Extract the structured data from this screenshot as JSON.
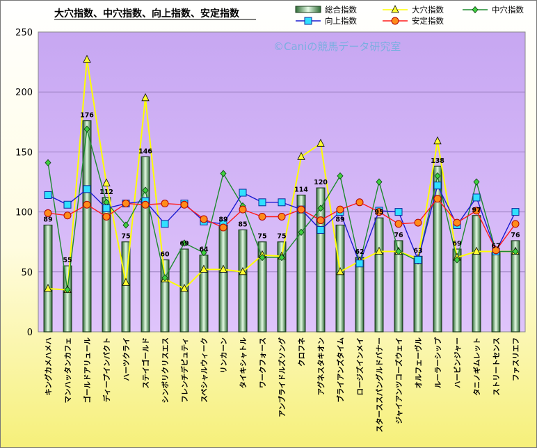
{
  "chart_data": {
    "type": "bar",
    "title": "大穴指数、中穴指数、向上指数、安定指数",
    "watermark": "©Caniの競馬データ研究室",
    "ylim": [
      0,
      250
    ],
    "yticks": [
      0,
      50,
      100,
      150,
      200,
      250
    ],
    "grid": true,
    "legend_position": "top-right",
    "categories": [
      "キングカメハメハ",
      "マンハッタンカフェ",
      "ゴールドアリュール",
      "ディープインパクト",
      "ハーツクライ",
      "ステイゴールド",
      "シンボリクリスエス",
      "フレンチデピュティ",
      "スペシャルウィーク",
      "リンカーン",
      "タイキシャトル",
      "ワークフォース",
      "アンブライドルズソング",
      "クロフネ",
      "アグネスタキオン",
      "ブライアンズタイム",
      "ロージズインメイ",
      "スターススパングルドバナー",
      "ジャイアンツコーズウェイ",
      "オルフェーヴル",
      "ルーラーシップ",
      "ハービンジャー",
      "タニノギムレット",
      "ストリートセンス",
      "ファスリエフ"
    ],
    "series": [
      {
        "name": "総合指数",
        "kind": "bar",
        "color": "#c4ecc4",
        "values": [
          89,
          55,
          176,
          112,
          75,
          146,
          60,
          69,
          64,
          89,
          85,
          75,
          75,
          114,
          120,
          89,
          62,
          95,
          76,
          63,
          138,
          69,
          97,
          67,
          76
        ]
      },
      {
        "name": "大穴指数",
        "kind": "line",
        "color": "#ffff00",
        "marker": "triangle",
        "values": [
          36,
          35,
          227,
          124,
          41,
          195,
          44,
          36,
          52,
          52,
          50,
          64,
          63,
          146,
          157,
          50,
          59,
          67,
          67,
          61,
          159,
          62,
          67,
          67,
          67
        ]
      },
      {
        "name": "中穴指数",
        "kind": "line",
        "color": "#1e8a2e",
        "marker": "diamond",
        "values": [
          141,
          35,
          169,
          108,
          89,
          118,
          45,
          74,
          66,
          132,
          105,
          62,
          62,
          83,
          103,
          130,
          57,
          125,
          67,
          59,
          130,
          60,
          125,
          67,
          67
        ]
      },
      {
        "name": "向上指数",
        "kind": "line",
        "color": "#1a1ad0",
        "marker": "square",
        "values": [
          114,
          106,
          119,
          103,
          107,
          109,
          90,
          107,
          92,
          90,
          116,
          108,
          108,
          102,
          85,
          100,
          57,
          101,
          100,
          60,
          122,
          89,
          112,
          67,
          100
        ]
      },
      {
        "name": "安定指数",
        "kind": "line",
        "color": "#ff1a1a",
        "marker": "circle",
        "values": [
          99,
          97,
          106,
          96,
          107,
          106,
          107,
          106,
          94,
          87,
          102,
          96,
          96,
          102,
          93,
          102,
          108,
          100,
          90,
          91,
          111,
          91,
          101,
          68,
          90
        ]
      }
    ],
    "data_labels": [
      "89",
      "55",
      "176",
      "112",
      "75",
      "146",
      "60",
      "69",
      "64",
      "89",
      "85",
      "75",
      "75",
      "114",
      "120",
      "89",
      "62",
      "95",
      "76",
      "63",
      "138",
      "69",
      "97",
      "67",
      "76"
    ]
  }
}
